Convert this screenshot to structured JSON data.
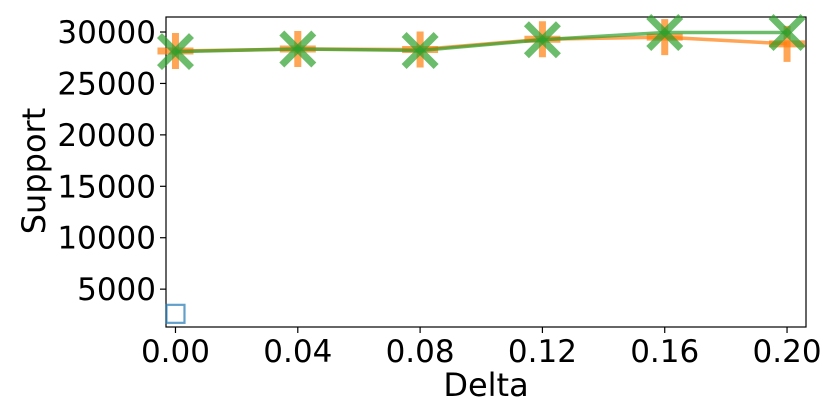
{
  "chart_data": {
    "type": "line",
    "title": "",
    "xlabel": "Delta",
    "ylabel": "Support",
    "x": [
      0.0,
      0.04,
      0.08,
      0.12,
      0.16,
      0.2
    ],
    "x_tick_labels": [
      "0.00",
      "0.04",
      "0.08",
      "0.12",
      "0.16",
      "0.20"
    ],
    "y_ticks": [
      5000,
      10000,
      15000,
      20000,
      25000,
      30000
    ],
    "y_tick_labels": [
      "5000",
      "10000",
      "15000",
      "20000",
      "25000",
      "30000"
    ],
    "xlim": [
      -0.0031,
      0.2062
    ],
    "ylim": [
      1320,
      31460
    ],
    "grid": false,
    "legend": "none",
    "series": [
      {
        "marker": "square",
        "color": "#1f77b4",
        "points": [
          [
            0.0,
            2600
          ]
        ]
      },
      {
        "marker": "plus",
        "color": "#ff7f0e",
        "points": [
          [
            0.0,
            28150
          ],
          [
            0.04,
            28350
          ],
          [
            0.08,
            28300
          ],
          [
            0.12,
            29300
          ],
          [
            0.16,
            29500
          ],
          [
            0.2,
            28850
          ]
        ]
      },
      {
        "marker": "x",
        "color": "#2ca02c",
        "points": [
          [
            0.0,
            28100
          ],
          [
            0.04,
            28350
          ],
          [
            0.08,
            28200
          ],
          [
            0.12,
            29250
          ],
          [
            0.16,
            29950
          ],
          [
            0.2,
            29950
          ]
        ]
      }
    ]
  }
}
